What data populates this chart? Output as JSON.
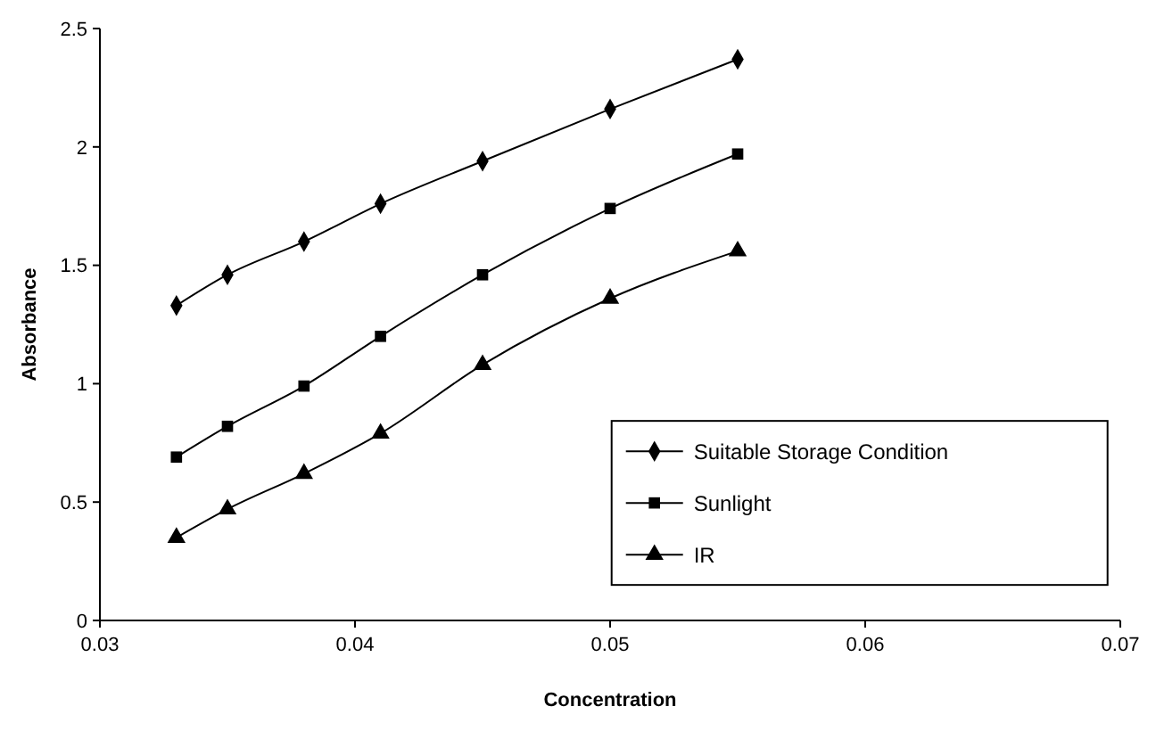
{
  "chart_data": {
    "type": "line",
    "xlabel": "Concentration",
    "ylabel": "Absorbance",
    "xlim": [
      0.03,
      0.07
    ],
    "xticks": [
      0.03,
      0.04,
      0.05,
      0.06,
      0.07
    ],
    "ylim": [
      0,
      2.5
    ],
    "yticks": [
      0,
      0.5,
      1,
      1.5,
      2,
      2.5
    ],
    "grid": false,
    "legend": "bottom right",
    "line_style": "solid",
    "x": [
      0.033,
      0.035,
      0.038,
      0.041,
      0.045,
      0.05,
      0.055
    ],
    "series": [
      {
        "name": "Suitable Storage Condition",
        "color": "#000000",
        "marker": "diamond",
        "values": [
          1.33,
          1.46,
          1.6,
          1.76,
          1.94,
          2.16,
          2.37
        ]
      },
      {
        "name": "Sunlight",
        "color": "#000000",
        "marker": "square",
        "values": [
          0.69,
          0.82,
          0.99,
          1.2,
          1.46,
          1.74,
          1.97
        ]
      },
      {
        "name": "IR",
        "color": "#000000",
        "marker": "triangle",
        "values": [
          0.35,
          0.47,
          0.62,
          0.79,
          1.08,
          1.36,
          1.56
        ]
      }
    ]
  }
}
